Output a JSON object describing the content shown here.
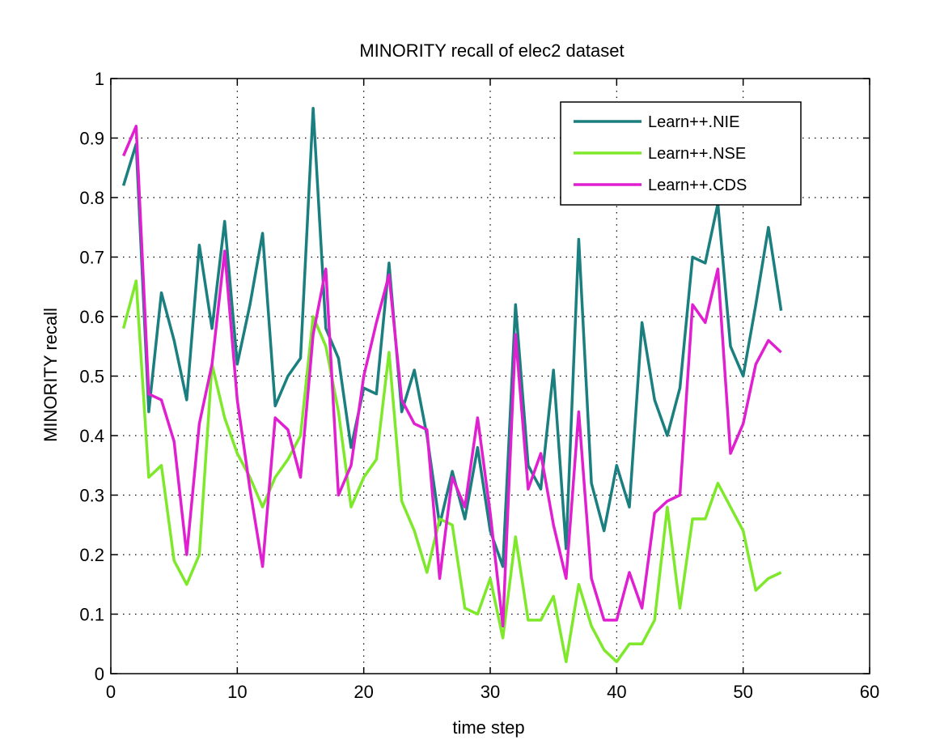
{
  "chart_data": {
    "type": "line",
    "title": "MINORITY recall of elec2 dataset",
    "xlabel": "time step",
    "ylabel": "MINORITY recall",
    "xlim": [
      0,
      60
    ],
    "ylim": [
      0,
      1
    ],
    "xticks": [
      0,
      10,
      20,
      30,
      40,
      50,
      60
    ],
    "yticks": [
      0,
      0.1,
      0.2,
      0.3,
      0.4,
      0.5,
      0.6,
      0.7,
      0.8,
      0.9,
      1
    ],
    "xtick_labels": [
      "0",
      "10",
      "20",
      "30",
      "40",
      "50",
      "60"
    ],
    "ytick_labels": [
      "0",
      "0.1",
      "0.2",
      "0.3",
      "0.4",
      "0.5",
      "0.6",
      "0.7",
      "0.8",
      "0.9",
      "1"
    ],
    "grid": true,
    "legend_position": "top-right",
    "x": [
      1,
      2,
      3,
      4,
      5,
      6,
      7,
      8,
      9,
      10,
      11,
      12,
      13,
      14,
      15,
      16,
      17,
      18,
      19,
      20,
      21,
      22,
      23,
      24,
      25,
      26,
      27,
      28,
      29,
      30,
      31,
      32,
      33,
      34,
      35,
      36,
      37,
      38,
      39,
      40,
      41,
      42,
      43,
      44,
      45,
      46,
      47,
      48,
      49,
      50,
      51,
      52,
      53
    ],
    "series": [
      {
        "name": "Learn++.NIE",
        "color": "#1b7f7f",
        "values": [
          0.82,
          0.89,
          0.44,
          0.64,
          0.56,
          0.46,
          0.72,
          0.58,
          0.76,
          0.52,
          0.62,
          0.74,
          0.45,
          0.5,
          0.53,
          0.95,
          0.58,
          0.53,
          0.38,
          0.48,
          0.47,
          0.69,
          0.44,
          0.51,
          0.4,
          0.25,
          0.34,
          0.26,
          0.38,
          0.24,
          0.18,
          0.62,
          0.35,
          0.31,
          0.51,
          0.21,
          0.73,
          0.32,
          0.24,
          0.35,
          0.28,
          0.59,
          0.46,
          0.4,
          0.48,
          0.7,
          0.69,
          0.79,
          0.55,
          0.5,
          0.62,
          0.75,
          0.61
        ]
      },
      {
        "name": "Learn++.NSE",
        "color": "#7ee82a",
        "values": [
          0.58,
          0.66,
          0.33,
          0.35,
          0.19,
          0.15,
          0.2,
          0.52,
          0.43,
          0.37,
          0.33,
          0.28,
          0.33,
          0.36,
          0.4,
          0.6,
          0.55,
          0.44,
          0.28,
          0.33,
          0.36,
          0.54,
          0.29,
          0.24,
          0.17,
          0.26,
          0.25,
          0.11,
          0.1,
          0.16,
          0.06,
          0.23,
          0.09,
          0.09,
          0.13,
          0.02,
          0.15,
          0.08,
          0.04,
          0.02,
          0.05,
          0.05,
          0.09,
          0.28,
          0.11,
          0.26,
          0.26,
          0.32,
          0.28,
          0.24,
          0.14,
          0.16,
          0.17
        ]
      },
      {
        "name": "Learn++.CDS",
        "color": "#e020d0",
        "values": [
          0.87,
          0.92,
          0.47,
          0.46,
          0.39,
          0.2,
          0.42,
          0.52,
          0.71,
          0.46,
          0.31,
          0.18,
          0.43,
          0.41,
          0.33,
          0.57,
          0.68,
          0.3,
          0.35,
          0.5,
          0.59,
          0.67,
          0.46,
          0.42,
          0.41,
          0.16,
          0.33,
          0.28,
          0.43,
          0.27,
          0.08,
          0.57,
          0.31,
          0.37,
          0.25,
          0.16,
          0.44,
          0.16,
          0.09,
          0.09,
          0.17,
          0.11,
          0.27,
          0.29,
          0.3,
          0.62,
          0.59,
          0.68,
          0.37,
          0.42,
          0.52,
          0.56,
          0.54
        ]
      }
    ]
  }
}
